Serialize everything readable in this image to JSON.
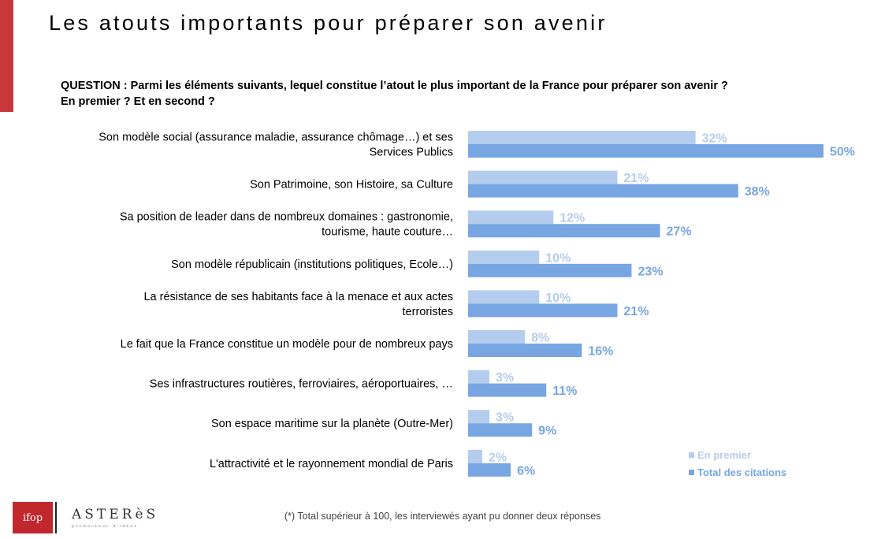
{
  "page": {
    "title": "Les atouts importants pour préparer son avenir",
    "question_line1": "QUESTION : Parmi les éléments suivants, lequel constitue l’atout le plus important de la France pour préparer son avenir ?",
    "question_line2": "En premier ? Et en second ?",
    "footnote": "(*) Total supérieur à 100, les interviewés ayant pu donner deux réponses",
    "logo_ifop": "ifop",
    "logo_asteres": "ASTERèS",
    "logo_asteres_tagline": "producteur d'idées"
  },
  "chart_data": {
    "type": "bar",
    "orientation": "horizontal",
    "value_suffix": "%",
    "xlim": [
      0,
      50
    ],
    "categories": [
      [
        "Son modèle social (assurance maladie, assurance chômage…) et ses",
        "Services Publics"
      ],
      [
        "Son Patrimoine, son Histoire, sa Culture"
      ],
      [
        "Sa position de leader dans de nombreux domaines : gastronomie,",
        "tourisme, haute couture…"
      ],
      [
        "Son modèle républicain (institutions politiques, Ecole…)"
      ],
      [
        "La résistance de ses habitants face à la menace et aux actes",
        "terroristes"
      ],
      [
        "Le fait que la France constitue un modèle pour de nombreux pays"
      ],
      [
        "Ses infrastructures routières, ferroviaires, aéroportuaires, …"
      ],
      [
        "Son espace maritime sur la planète (Outre-Mer)"
      ],
      [
        "L'attractivité et le rayonnement mondial de Paris"
      ]
    ],
    "series": [
      {
        "name": "En premier",
        "color": "#b4cdef",
        "values": [
          32,
          21,
          12,
          10,
          10,
          8,
          3,
          3,
          2
        ]
      },
      {
        "name": "Total des citations",
        "color": "#77a6e3",
        "values": [
          50,
          38,
          27,
          23,
          21,
          16,
          11,
          9,
          6
        ]
      }
    ],
    "legend": "bottom-right",
    "grid": false
  }
}
